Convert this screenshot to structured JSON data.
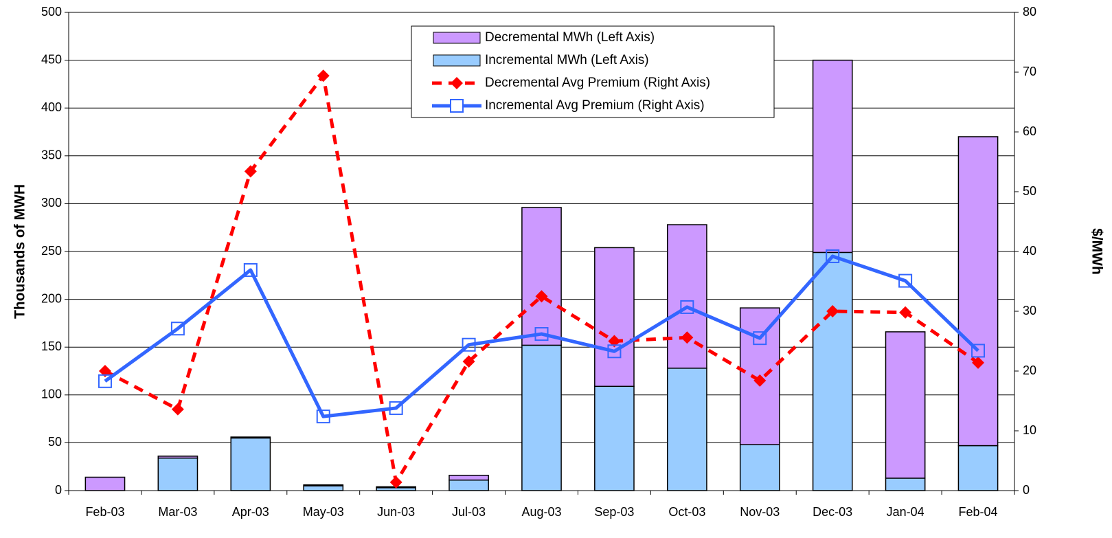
{
  "chart_data": {
    "type": "bar",
    "categories": [
      "Feb-03",
      "Mar-03",
      "Apr-03",
      "May-03",
      "Jun-03",
      "Jul-03",
      "Aug-03",
      "Sep-03",
      "Oct-03",
      "Nov-03",
      "Dec-03",
      "Jan-04",
      "Feb-04"
    ],
    "series": [
      {
        "name": "Decremental MWh (Left Axis)",
        "type": "bar",
        "color": "#cc99ff",
        "values": [
          14,
          2,
          1,
          1,
          1,
          5,
          144,
          145,
          150,
          143,
          201,
          153,
          323
        ]
      },
      {
        "name": "Incremental MWh (Left Axis)",
        "type": "bar",
        "color": "#99ccff",
        "values": [
          0,
          34,
          55,
          5,
          3,
          11,
          152,
          109,
          128,
          48,
          249,
          13,
          47
        ]
      },
      {
        "name": "Decremental Avg Premium (Right Axis)",
        "type": "line",
        "axis": "y2",
        "color": "#ff0000",
        "marker": "diamond",
        "dashed": true,
        "values": [
          20,
          13.6,
          53.4,
          69.4,
          1.4,
          21.6,
          32.5,
          25,
          25.6,
          18.4,
          30,
          29.8,
          21.4
        ]
      },
      {
        "name": "Incremental Avg Premium (Right Axis)",
        "type": "line",
        "axis": "y2",
        "color": "#3366ff",
        "marker": "square",
        "dashed": false,
        "values": [
          18.3,
          27.1,
          36.9,
          12.4,
          13.8,
          24.4,
          26.2,
          23.3,
          30.7,
          25.5,
          39.2,
          35.1,
          23.4
        ]
      }
    ],
    "ylabel": "Thousands of MWH",
    "y2label": "$/MWh",
    "ylim": [
      0,
      500
    ],
    "yticks": [
      0,
      50,
      100,
      150,
      200,
      250,
      300,
      350,
      400,
      450,
      500
    ],
    "y2lim": [
      0,
      80
    ],
    "y2ticks": [
      0,
      10,
      20,
      30,
      40,
      50,
      60,
      70,
      80
    ],
    "grid": true,
    "stacked": true,
    "legend": "top"
  }
}
